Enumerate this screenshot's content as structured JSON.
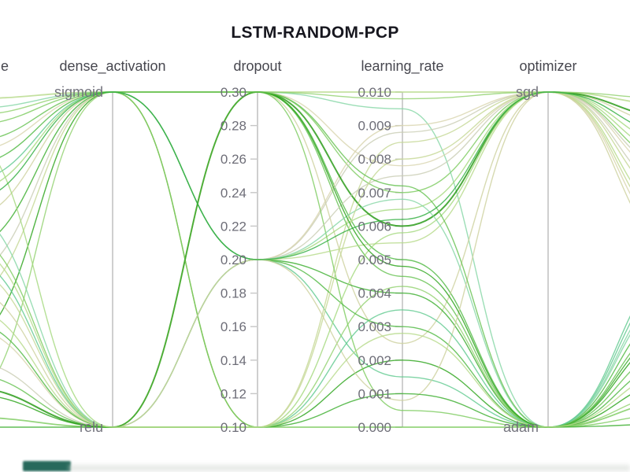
{
  "title": "LSTM-RANDOM-PCP",
  "left_axis_partial_title": "e",
  "chart_data": {
    "type": "parallel-coordinates",
    "title": "LSTM-RANDOM-PCP",
    "grid": false,
    "background": "#ffffff",
    "axes": [
      {
        "id": "left_cut",
        "title": "e",
        "type": "categorical",
        "note_visible_title_fragment": "e"
      },
      {
        "id": "dense_activation",
        "title": "dense_activation",
        "type": "categorical",
        "categories": [
          "sigmoid",
          "relu"
        ]
      },
      {
        "id": "dropout",
        "title": "dropout",
        "type": "numeric",
        "domain": [
          0.1,
          0.3
        ],
        "ticks": [
          "0.30",
          "0.28",
          "0.26",
          "0.24",
          "0.22",
          "0.20",
          "0.18",
          "0.16",
          "0.14",
          "0.12",
          "0.10"
        ]
      },
      {
        "id": "learning_rate",
        "title": "learning_rate",
        "type": "numeric",
        "domain": [
          0.0,
          0.01
        ],
        "ticks": [
          "0.010",
          "0.009",
          "0.008",
          "0.007",
          "0.006",
          "0.005",
          "0.004",
          "0.003",
          "0.002",
          "0.001",
          "0.000"
        ]
      },
      {
        "id": "optimizer",
        "title": "optimizer",
        "type": "categorical",
        "categories": [
          "sgd",
          "adam"
        ]
      },
      {
        "id": "right_cut",
        "title": "",
        "type": "numeric"
      }
    ],
    "palette": [
      "#d8d4ae",
      "#cdd19e",
      "#c4d794",
      "#b5da88",
      "#a3d87c",
      "#90d16d",
      "#7aca5d",
      "#63c14e",
      "#4cb83f",
      "#38ad2a",
      "#28a216",
      "#1f960d",
      "#83d6a4",
      "#5fc98e",
      "#c9cdb4",
      "#2fae3f"
    ],
    "run_fields": [
      "left_frac",
      "dense_activation",
      "dropout",
      "learning_rate",
      "optimizer",
      "right_frac",
      "color_index",
      "stroke_width"
    ],
    "runs": [
      [
        0.02,
        "sigmoid",
        0.3,
        0.01,
        "sgd",
        0.04,
        3,
        1.8
      ],
      [
        0.1,
        "sigmoid",
        0.3,
        0.007,
        "sgd",
        0.22,
        6,
        1.4
      ],
      [
        0.05,
        "sigmoid",
        0.3,
        0.0095,
        "adam",
        0.58,
        12,
        1.4
      ],
      [
        0.22,
        "sigmoid",
        0.3,
        0.005,
        "adam",
        0.8,
        8,
        1.4
      ],
      [
        0.38,
        "sigmoid",
        0.3,
        0.0025,
        "sgd",
        0.1,
        1,
        1.4
      ],
      [
        0.55,
        "sigmoid",
        0.2,
        0.0088,
        "sgd",
        0.3,
        14,
        1.4
      ],
      [
        0.3,
        "sigmoid",
        0.2,
        0.0065,
        "sgd",
        0.16,
        4,
        1.4
      ],
      [
        0.47,
        "sigmoid",
        0.2,
        0.004,
        "adam",
        0.7,
        9,
        1.4
      ],
      [
        0.18,
        "sigmoid",
        0.2,
        0.009,
        "sgd",
        0.44,
        0,
        1.4
      ],
      [
        0.27,
        "sigmoid",
        0.2,
        0.0015,
        "adam",
        0.52,
        13,
        1.4
      ],
      [
        0.62,
        "sigmoid",
        0.1,
        0.0085,
        "sgd",
        0.33,
        2,
        1.4
      ],
      [
        0.75,
        "sigmoid",
        0.1,
        0.002,
        "adam",
        0.86,
        10,
        1.4
      ],
      [
        0.93,
        "sigmoid",
        0.1,
        0.0042,
        "adam",
        0.9,
        5,
        1.4
      ],
      [
        0.88,
        "relu",
        0.3,
        0.006,
        "sgd",
        0.08,
        11,
        2.0
      ],
      [
        0.84,
        "relu",
        0.3,
        0.0045,
        "adam",
        0.76,
        7,
        1.4
      ],
      [
        0.42,
        "relu",
        0.3,
        0.0005,
        "adam",
        0.96,
        6,
        1.4
      ],
      [
        0.7,
        "relu",
        0.3,
        0.0078,
        "sgd",
        0.26,
        0,
        1.4
      ],
      [
        0.8,
        "relu",
        0.2,
        0.0075,
        "sgd",
        0.24,
        14,
        1.4
      ],
      [
        0.68,
        "relu",
        0.2,
        0.003,
        "adam",
        0.64,
        8,
        1.4
      ],
      [
        0.64,
        "relu",
        0.2,
        0.0055,
        "sgd",
        0.38,
        3,
        1.4
      ],
      [
        0.35,
        "relu",
        0.2,
        0.0068,
        "adam",
        0.6,
        12,
        1.4
      ],
      [
        0.58,
        "relu",
        0.2,
        0.0008,
        "sgd",
        0.48,
        1,
        1.4
      ],
      [
        0.97,
        "relu",
        0.1,
        0.0,
        "adam",
        0.92,
        6,
        1.8
      ],
      [
        1.0,
        "relu",
        0.1,
        0.001,
        "adam",
        0.99,
        9,
        1.4
      ],
      [
        0.52,
        "relu",
        0.1,
        0.008,
        "sgd",
        0.41,
        2,
        1.4
      ],
      [
        0.49,
        "relu",
        0.1,
        0.0035,
        "adam",
        0.55,
        13,
        1.4
      ],
      [
        0.12,
        "relu",
        0.1,
        0.0058,
        "sgd",
        0.19,
        4,
        1.4
      ],
      [
        0.07,
        "sigmoid",
        0.3,
        0.0098,
        "sgd",
        0.02,
        5,
        1.4
      ],
      [
        0.9,
        "relu",
        0.3,
        0.0048,
        "adam",
        0.72,
        10,
        1.4
      ],
      [
        0.15,
        "sigmoid",
        0.3,
        0.0072,
        "adam",
        0.68,
        7,
        1.4
      ],
      [
        0.33,
        "sigmoid",
        0.2,
        0.0062,
        "sgd",
        0.13,
        15,
        1.4
      ],
      [
        0.45,
        "relu",
        0.1,
        0.0028,
        "adam",
        0.83,
        3,
        1.4
      ]
    ],
    "axis_colors": {
      "line": "#cfcfcf",
      "tick": "#c6c6c6",
      "label": "#6e6e78",
      "title": "#47474f"
    }
  }
}
